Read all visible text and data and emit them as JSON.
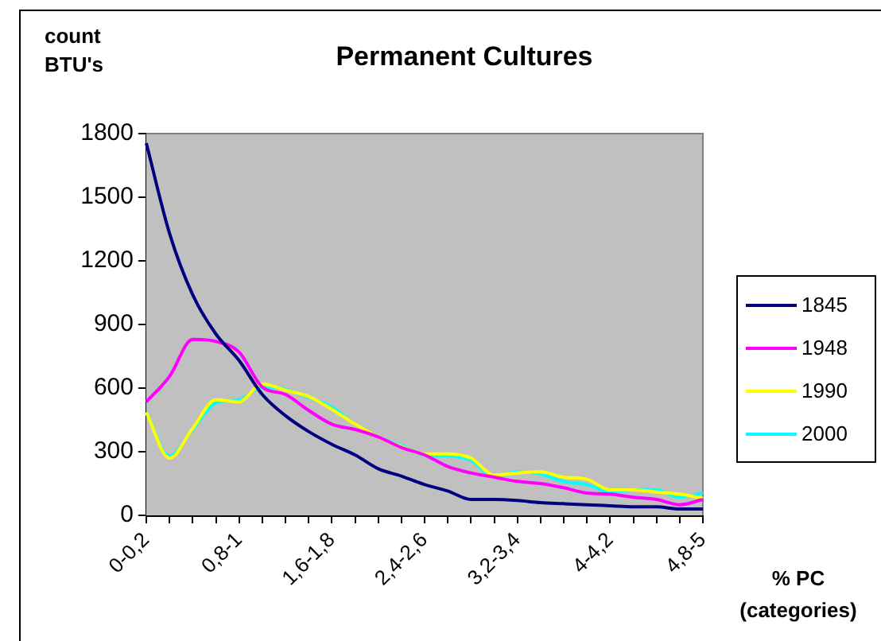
{
  "chart_data": {
    "type": "line",
    "title": "Permanent Cultures",
    "ylabel": "count\nBTU's",
    "xlabel": "% PC\n(categories)",
    "categories": [
      "0-0,2",
      null,
      null,
      null,
      "0,8-1",
      null,
      null,
      null,
      "1,6-1,8",
      null,
      null,
      null,
      "2,4-2,6",
      null,
      null,
      null,
      "3,2-3,4",
      null,
      null,
      null,
      "4-4,2",
      null,
      null,
      null,
      "4,8-5"
    ],
    "series": [
      {
        "name": "1845",
        "color": "#000080",
        "values": [
          1755,
          1330,
          1040,
          855,
          730,
          570,
          470,
          395,
          335,
          285,
          220,
          185,
          145,
          115,
          75,
          75,
          70,
          60,
          55,
          50,
          45,
          40,
          40,
          30,
          30
        ]
      },
      {
        "name": "1948",
        "color": "#ff00ff",
        "values": [
          535,
          655,
          830,
          820,
          770,
          605,
          570,
          495,
          430,
          405,
          370,
          320,
          285,
          230,
          200,
          180,
          160,
          150,
          130,
          105,
          100,
          85,
          75,
          50,
          75
        ]
      },
      {
        "name": "1990",
        "color": "#ffff00",
        "values": [
          485,
          270,
          410,
          545,
          535,
          620,
          590,
          560,
          500,
          430,
          370,
          325,
          290,
          290,
          270,
          190,
          200,
          205,
          180,
          170,
          120,
          120,
          110,
          100,
          80
        ]
      },
      {
        "name": "2000",
        "color": "#00ffff",
        "values": [
          485,
          280,
          405,
          530,
          545,
          605,
          595,
          555,
          510,
          430,
          370,
          330,
          285,
          280,
          260,
          180,
          205,
          195,
          160,
          145,
          110,
          120,
          120,
          85,
          105
        ]
      }
    ],
    "ylim": [
      0,
      1800
    ],
    "yticks": [
      0,
      300,
      600,
      900,
      1200,
      1500,
      1800
    ],
    "legend": "right",
    "marker": "none",
    "line_style": "solid"
  }
}
